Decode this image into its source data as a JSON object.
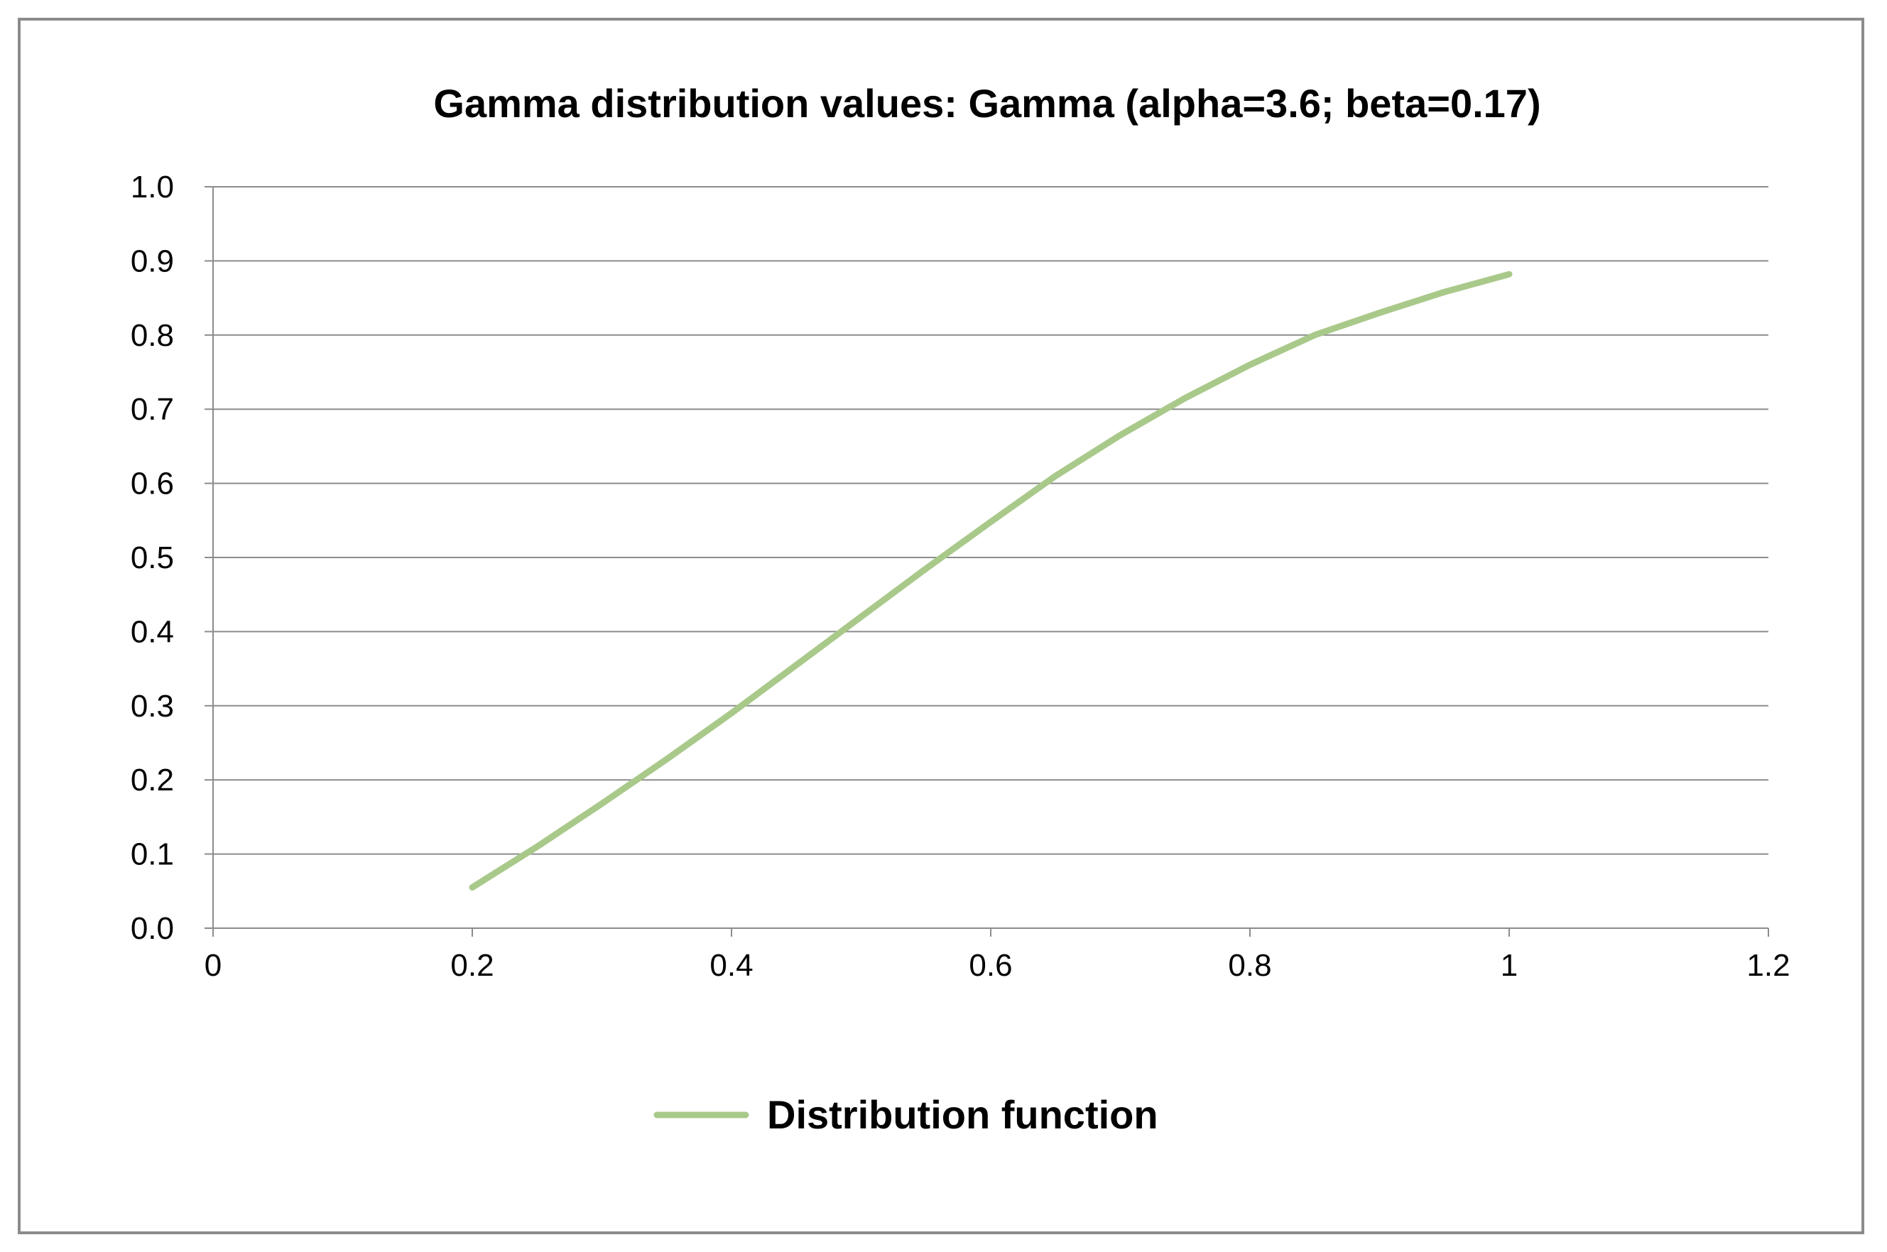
{
  "chart_data": {
    "type": "line",
    "title": "Gamma distribution values: Gamma (alpha=3.6; beta=0.17)",
    "xlabel": "",
    "ylabel": "",
    "xlim": [
      0,
      1.2
    ],
    "ylim": [
      0,
      1.0
    ],
    "x_ticks": [
      "0",
      "0.2",
      "0.4",
      "0.6",
      "0.8",
      "1",
      "1.2"
    ],
    "y_ticks": [
      "0.0",
      "0.1",
      "0.2",
      "0.3",
      "0.4",
      "0.5",
      "0.6",
      "0.7",
      "0.8",
      "0.9",
      "1.0"
    ],
    "grid": "horizontal",
    "legend_position": "bottom",
    "series": [
      {
        "name": "Distribution function",
        "color": "#a9c98a",
        "x": [
          0.2,
          0.25,
          0.3,
          0.35,
          0.4,
          0.45,
          0.5,
          0.55,
          0.6,
          0.65,
          0.7,
          0.75,
          0.8,
          0.85,
          0.9,
          0.95,
          1.0
        ],
        "y": [
          0.055,
          0.11,
          0.168,
          0.228,
          0.29,
          0.355,
          0.42,
          0.485,
          0.548,
          0.61,
          0.665,
          0.715,
          0.76,
          0.8,
          0.83,
          0.858,
          0.882
        ]
      }
    ]
  }
}
